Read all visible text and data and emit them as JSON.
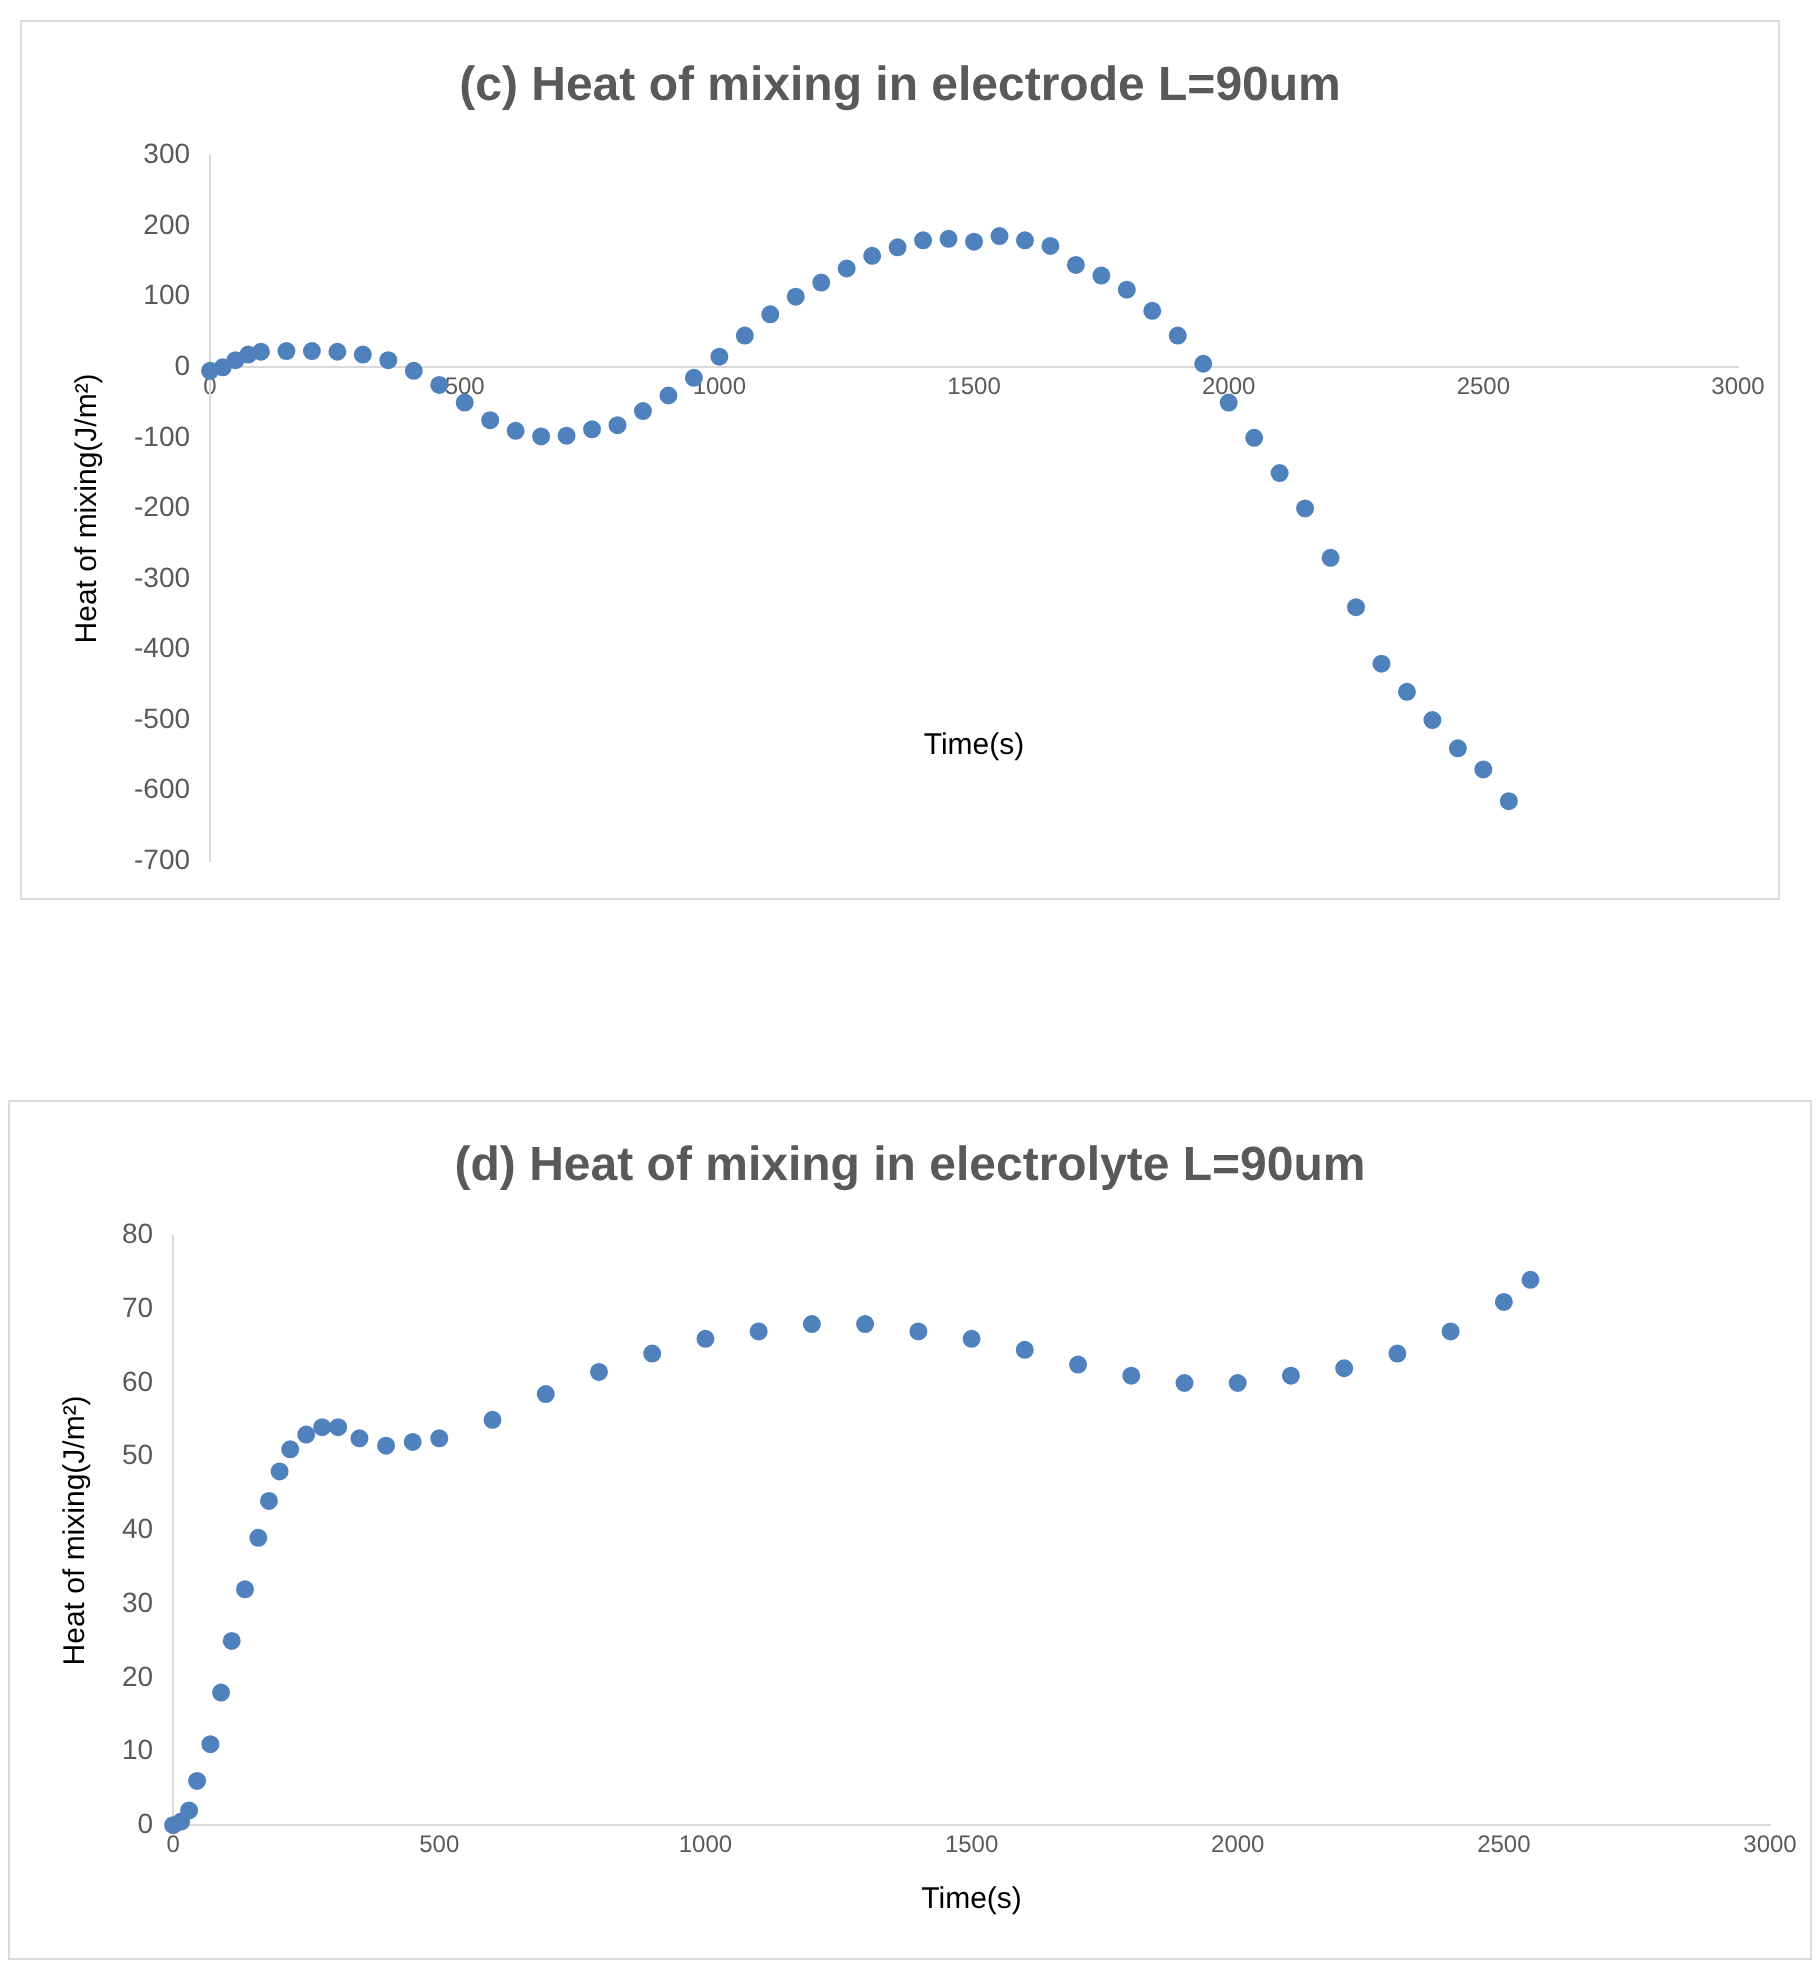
{
  "chart_data": [
    {
      "type": "scatter",
      "title": "(c) Heat of mixing in electrode L=90um",
      "xlabel": "Time(s)",
      "ylabel": "Heat of mixing(J/m²)",
      "marker": "circle",
      "grid": false,
      "legend": false,
      "xlim": [
        0,
        3000
      ],
      "xticks": [
        0,
        500,
        1000,
        1500,
        2000,
        2500,
        3000
      ],
      "ylim": [
        -700,
        300
      ],
      "yticks": [
        -700,
        -600,
        -500,
        -400,
        -300,
        -200,
        -100,
        0,
        100,
        200,
        300
      ],
      "series": [
        {
          "color": "#4f81bd",
          "x": [
            0,
            25,
            50,
            75,
            100,
            150,
            200,
            250,
            300,
            350,
            400,
            450,
            500,
            550,
            600,
            650,
            700,
            750,
            800,
            850,
            900,
            950,
            1000,
            1050,
            1100,
            1150,
            1200,
            1250,
            1300,
            1350,
            1400,
            1450,
            1500,
            1550,
            1600,
            1650,
            1700,
            1750,
            1800,
            1850,
            1900,
            1950,
            2000,
            2050,
            2100,
            2150,
            2200,
            2250,
            2300,
            2350,
            2400,
            2450,
            2500,
            2550
          ],
          "values": [
            -5,
            0,
            10,
            18,
            22,
            23,
            23,
            22,
            18,
            10,
            -5,
            -25,
            -50,
            -75,
            -90,
            -98,
            -97,
            -88,
            -82,
            -62,
            -40,
            -15,
            15,
            45,
            75,
            100,
            120,
            140,
            158,
            170,
            180,
            182,
            178,
            186,
            180,
            172,
            145,
            130,
            110,
            80,
            45,
            5,
            -50,
            -100,
            -150,
            -200,
            -270,
            -340,
            -420,
            -460,
            -500,
            -540,
            -570,
            -615
          ]
        }
      ]
    },
    {
      "type": "scatter",
      "title": "(d) Heat of mixing in electrolyte L=90um",
      "xlabel": "Time(s)",
      "ylabel": "Heat of mixing(J/m²)",
      "marker": "circle",
      "grid": false,
      "legend": false,
      "xlim": [
        0,
        3000
      ],
      "xticks": [
        0,
        500,
        1000,
        1500,
        2000,
        2500,
        3000
      ],
      "ylim": [
        0,
        80
      ],
      "yticks": [
        0,
        10,
        20,
        30,
        40,
        50,
        60,
        70,
        80
      ],
      "series": [
        {
          "color": "#4f81bd",
          "x": [
            0,
            15,
            30,
            45,
            70,
            90,
            110,
            135,
            160,
            180,
            200,
            220,
            250,
            280,
            310,
            350,
            400,
            450,
            500,
            600,
            700,
            800,
            900,
            1000,
            1100,
            1200,
            1300,
            1400,
            1500,
            1600,
            1700,
            1800,
            1900,
            2000,
            2100,
            2200,
            2300,
            2400,
            2500,
            2550
          ],
          "values": [
            0,
            0.5,
            2,
            6,
            11,
            18,
            25,
            32,
            39,
            44,
            48,
            51,
            53,
            54,
            54,
            52.5,
            51.5,
            52,
            52.5,
            55,
            58.5,
            61.5,
            64,
            66,
            67,
            68,
            68,
            67,
            66,
            64.5,
            62.5,
            61,
            60,
            60,
            61,
            62,
            64,
            67,
            71,
            74
          ]
        }
      ]
    }
  ]
}
